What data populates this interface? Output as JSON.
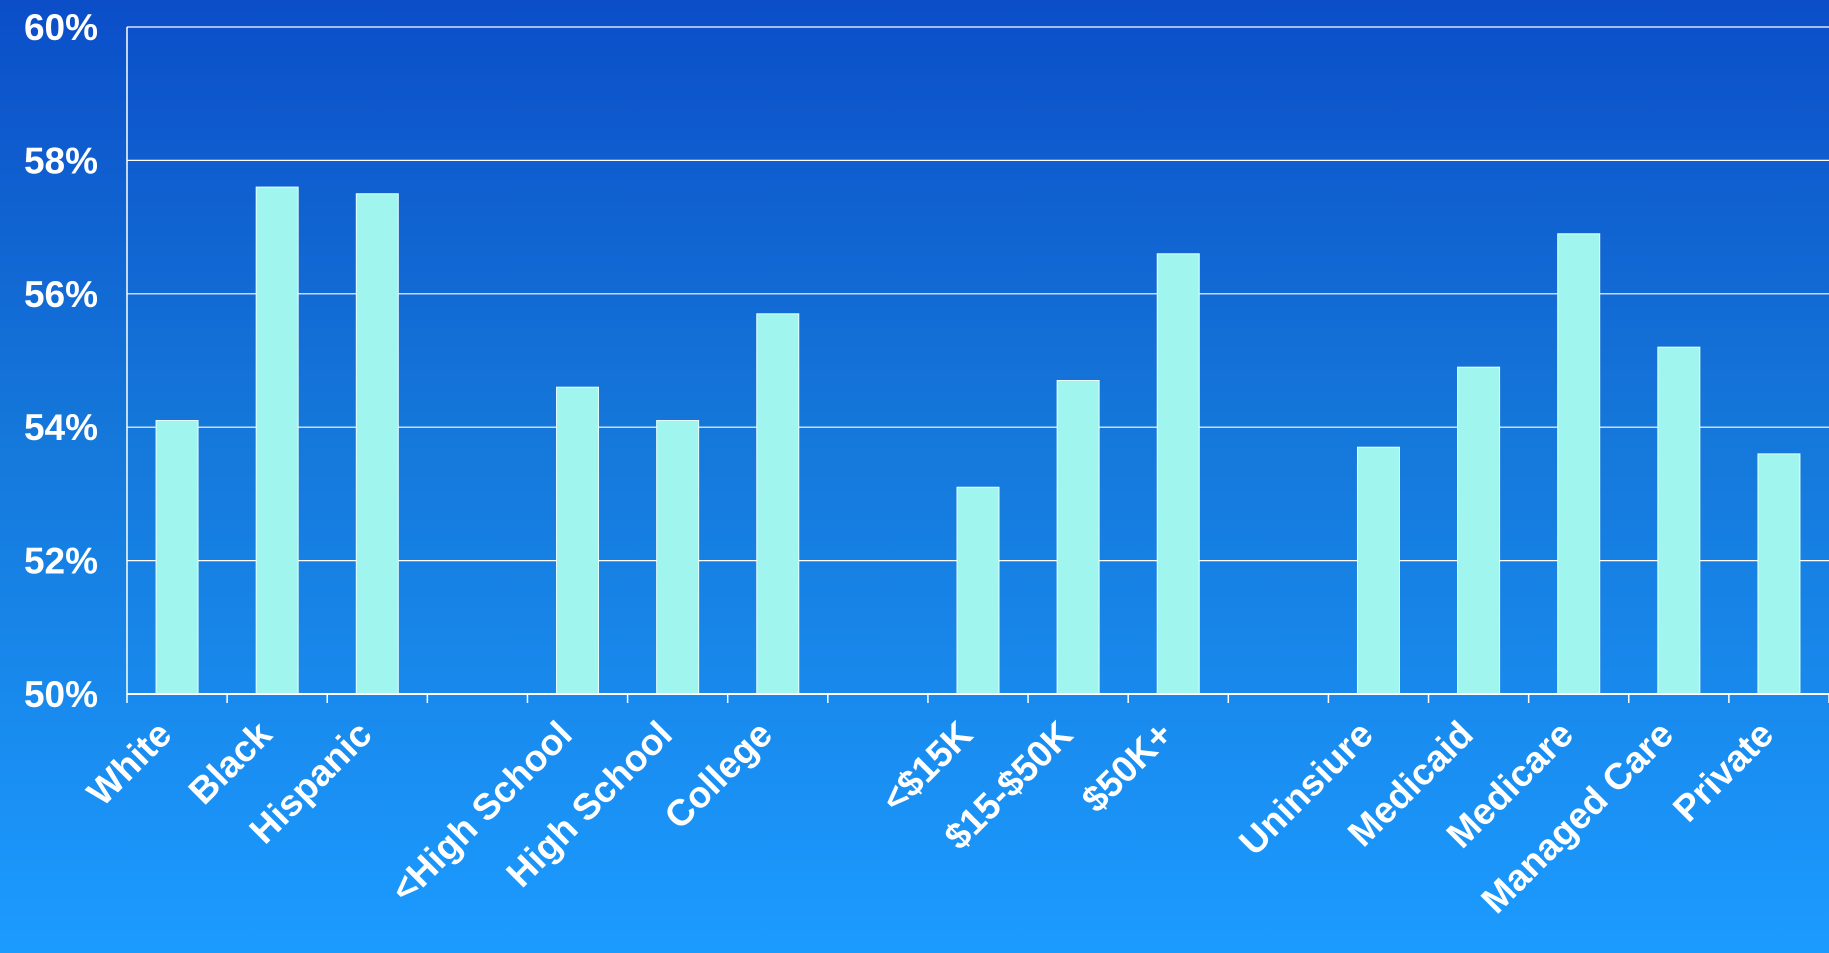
{
  "colors": {
    "bar": "#a0f5ee",
    "bar_stroke": "#e9fffd",
    "grid": "#ffffff",
    "axis": "#ffffff",
    "text": "#ffffff",
    "background_top": "#0b4ec8",
    "background_bottom": "#1c9bff"
  },
  "chart_data": {
    "type": "bar",
    "title": "",
    "xlabel": "",
    "ylabel": "",
    "ylim": [
      50,
      60
    ],
    "yticks": [
      "50%",
      "52%",
      "54%",
      "56%",
      "58%",
      "60%"
    ],
    "ytick_values": [
      50,
      52,
      54,
      56,
      58,
      60
    ],
    "grid": true,
    "categories": [
      "White",
      "Black",
      "Hispanic",
      "",
      "<High School",
      "High School",
      "College",
      "",
      "<$15K",
      "$15-$50K",
      "$50K+",
      "",
      "Uninsiure",
      "Medicaid",
      "Medicare",
      "Managed Care",
      "Private"
    ],
    "values": [
      54.1,
      57.6,
      57.5,
      null,
      54.6,
      54.1,
      55.7,
      null,
      53.1,
      54.7,
      56.6,
      null,
      53.7,
      54.9,
      56.9,
      55.2,
      53.6
    ]
  }
}
